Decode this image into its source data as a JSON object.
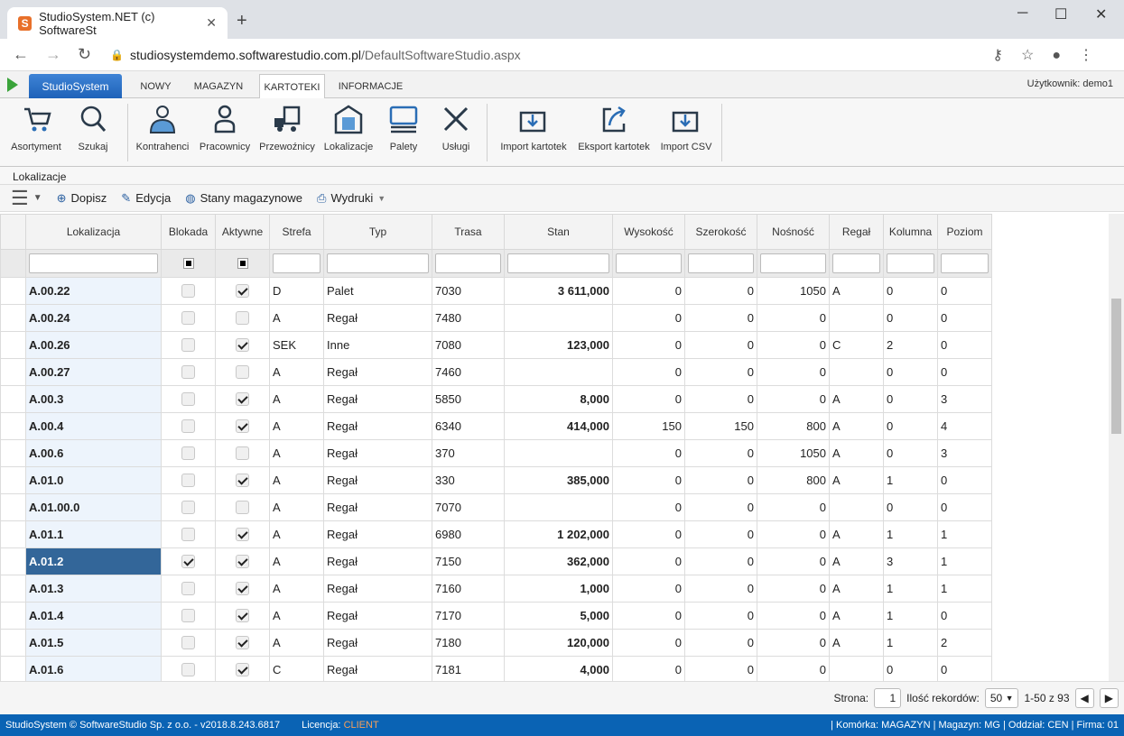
{
  "browser": {
    "tab_title": "StudioSystem.NET (c) SoftwareSt",
    "url_host": "studiosystemdemo.softwarestudio.com.pl",
    "url_path": "/DefaultSoftwareStudio.aspx"
  },
  "app": {
    "brand": "StudioSystem",
    "tabs": [
      "NOWY",
      "MAGAZYN",
      "KARTOTEKI",
      "INFORMACJE"
    ],
    "active_tab": "KARTOTEKI",
    "user": "Użytkownik: demo1"
  },
  "ribbon": [
    "Asortyment",
    "Szukaj",
    "Kontrahenci",
    "Pracownicy",
    "Przewoźnicy",
    "Lokalizacje",
    "Palety",
    "Usługi",
    "Import kartotek",
    "Eksport kartotek",
    "Import CSV"
  ],
  "breadcrumb": "Lokalizacje",
  "toolbar": {
    "add": "Dopisz",
    "edit": "Edycja",
    "stock": "Stany magazynowe",
    "print": "Wydruki"
  },
  "columns": [
    "Lokalizacja",
    "Blokada",
    "Aktywne",
    "Strefa",
    "Typ",
    "Trasa",
    "Stan",
    "Wysokość",
    "Szerokość",
    "Nośność",
    "Regał",
    "Kolumna",
    "Poziom"
  ],
  "rows": [
    [
      "A.00.22",
      false,
      true,
      "D",
      "Palet",
      "7030",
      "3 611,000",
      "0",
      "0",
      "1050",
      "A",
      "0",
      "0"
    ],
    [
      "A.00.24",
      false,
      false,
      "A",
      "Regał",
      "7480",
      "",
      "0",
      "0",
      "0",
      "",
      "0",
      "0"
    ],
    [
      "A.00.26",
      false,
      true,
      "SEK",
      "Inne",
      "7080",
      "123,000",
      "0",
      "0",
      "0",
      "C",
      "2",
      "0"
    ],
    [
      "A.00.27",
      false,
      false,
      "A",
      "Regał",
      "7460",
      "",
      "0",
      "0",
      "0",
      "",
      "0",
      "0"
    ],
    [
      "A.00.3",
      false,
      true,
      "A",
      "Regał",
      "5850",
      "8,000",
      "0",
      "0",
      "0",
      "A",
      "0",
      "3"
    ],
    [
      "A.00.4",
      false,
      true,
      "A",
      "Regał",
      "6340",
      "414,000",
      "150",
      "150",
      "800",
      "A",
      "0",
      "4"
    ],
    [
      "A.00.6",
      false,
      false,
      "A",
      "Regał",
      "370",
      "",
      "0",
      "0",
      "1050",
      "A",
      "0",
      "3"
    ],
    [
      "A.01.0",
      false,
      true,
      "A",
      "Regał",
      "330",
      "385,000",
      "0",
      "0",
      "800",
      "A",
      "1",
      "0"
    ],
    [
      "A.01.00.0",
      false,
      false,
      "A",
      "Regał",
      "7070",
      "",
      "0",
      "0",
      "0",
      "",
      "0",
      "0"
    ],
    [
      "A.01.1",
      false,
      true,
      "A",
      "Regał",
      "6980",
      "1 202,000",
      "0",
      "0",
      "0",
      "A",
      "1",
      "1"
    ],
    [
      "A.01.2",
      true,
      true,
      "A",
      "Regał",
      "7150",
      "362,000",
      "0",
      "0",
      "0",
      "A",
      "3",
      "1"
    ],
    [
      "A.01.3",
      false,
      true,
      "A",
      "Regał",
      "7160",
      "1,000",
      "0",
      "0",
      "0",
      "A",
      "1",
      "1"
    ],
    [
      "A.01.4",
      false,
      true,
      "A",
      "Regał",
      "7170",
      "5,000",
      "0",
      "0",
      "0",
      "A",
      "1",
      "0"
    ],
    [
      "A.01.5",
      false,
      true,
      "A",
      "Regał",
      "7180",
      "120,000",
      "0",
      "0",
      "0",
      "A",
      "1",
      "2"
    ],
    [
      "A.01.6",
      false,
      true,
      "C",
      "Regał",
      "7181",
      "4,000",
      "0",
      "0",
      "0",
      "",
      "0",
      "0"
    ]
  ],
  "selected_row": "A.01.2",
  "pager": {
    "page_label": "Strona:",
    "page": "1",
    "records_label": "Ilość rekordów:",
    "page_size": "50",
    "range": "1-50 z 93"
  },
  "status": {
    "copyright": "StudioSystem © SoftwareStudio Sp. z o.o. - v2018.8.243.6817",
    "license_label": "Licencja:",
    "license": "CLIENT",
    "right": "| Komórka: MAGAZYN | Magazyn: MG | Oddział: CEN | Firma: 01"
  },
  "colors": {
    "brand": "#1e62b8",
    "status_bar": "#0a63b4",
    "selected": "#336699"
  }
}
